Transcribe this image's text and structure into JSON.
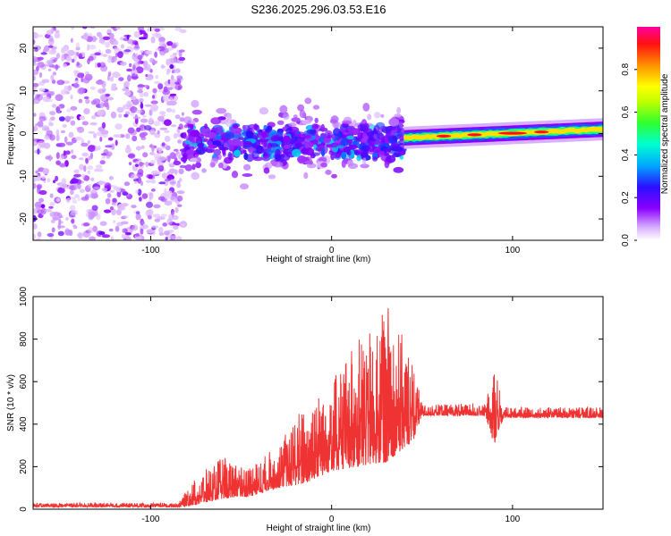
{
  "title": "S236.2025.296.03.53.E16",
  "chart_data": [
    {
      "type": "heatmap",
      "name": "spectrogram",
      "xlabel": "Height of straight line (km)",
      "ylabel": "Frequency (Hz)",
      "xlim": [
        -165,
        150
      ],
      "ylim": [
        -25,
        25
      ],
      "xticks": [
        -100,
        0,
        100
      ],
      "yticks": [
        -20,
        -10,
        0,
        10,
        20
      ],
      "colorbar": {
        "label": "Normalized spectral amplitude",
        "range": [
          0,
          1
        ],
        "ticks": [
          0.0,
          0.2,
          0.4,
          0.6,
          0.8
        ]
      },
      "regions": [
        {
          "description": "broadband noise",
          "x": [
            -165,
            -82
          ],
          "y": [
            -25,
            25
          ],
          "amplitude": 0.1
        },
        {
          "description": "scattered signal",
          "x": [
            -82,
            40
          ],
          "y_center": -2,
          "y_halfwidth": 8,
          "amplitude": 0.25
        },
        {
          "description": "narrow tone",
          "x": [
            40,
            150
          ],
          "y_start": -1,
          "y_end": 1,
          "amplitude": 0.9
        }
      ]
    },
    {
      "type": "line",
      "name": "snr",
      "xlabel": "Height of straight line (km)",
      "ylabel": "SNR (10 * v/v)",
      "xlim": [
        -165,
        150
      ],
      "ylim": [
        0,
        1000
      ],
      "xticks": [
        -100,
        0,
        100
      ],
      "yticks": [
        0,
        200,
        400,
        600,
        800,
        1000
      ],
      "color": "#ef3333",
      "envelope": [
        {
          "x": -165,
          "low": 10,
          "high": 30
        },
        {
          "x": -85,
          "low": 10,
          "high": 30
        },
        {
          "x": -75,
          "low": 20,
          "high": 150
        },
        {
          "x": -60,
          "low": 50,
          "high": 250
        },
        {
          "x": -45,
          "low": 60,
          "high": 200
        },
        {
          "x": -30,
          "low": 100,
          "high": 300
        },
        {
          "x": -15,
          "low": 120,
          "high": 500
        },
        {
          "x": 0,
          "low": 180,
          "high": 600
        },
        {
          "x": 15,
          "low": 200,
          "high": 800
        },
        {
          "x": 30,
          "low": 220,
          "high": 1000
        },
        {
          "x": 45,
          "low": 320,
          "high": 700
        },
        {
          "x": 50,
          "low": 440,
          "high": 490
        },
        {
          "x": 85,
          "low": 440,
          "high": 500
        },
        {
          "x": 90,
          "low": 300,
          "high": 680
        },
        {
          "x": 95,
          "low": 430,
          "high": 480
        },
        {
          "x": 150,
          "low": 430,
          "high": 480
        }
      ]
    }
  ]
}
